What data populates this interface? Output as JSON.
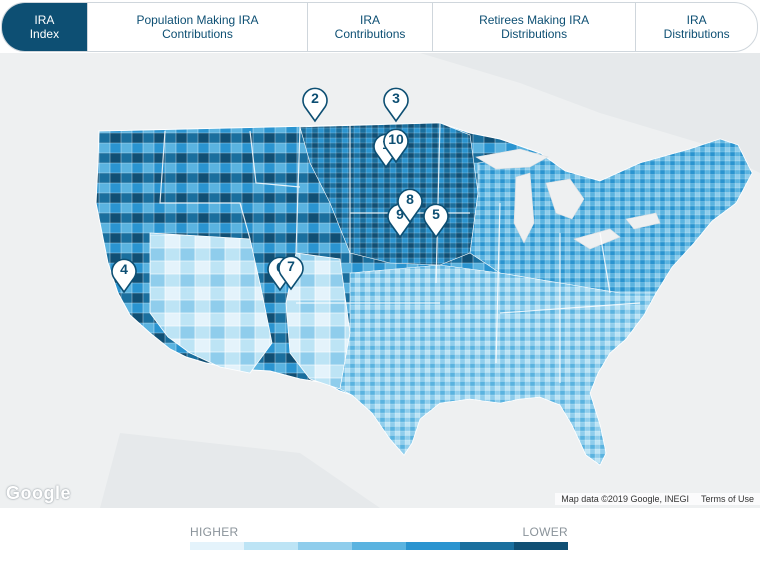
{
  "tabs": [
    {
      "label": "IRA\nIndex",
      "active": true
    },
    {
      "label": "Population Making IRA\nContributions",
      "active": false
    },
    {
      "label": "IRA\nContributions",
      "active": false
    },
    {
      "label": "Retirees Making IRA\nDistributions",
      "active": false
    },
    {
      "label": "IRA\nDistributions",
      "active": false
    }
  ],
  "map": {
    "logo_text": "Google",
    "attribution": "Map data ©2019 Google, INEGI",
    "terms": "Terms of Use",
    "markers": [
      "2",
      "3",
      "10",
      "1",
      "8",
      "9",
      "5",
      "4",
      "6",
      "7"
    ]
  },
  "legend": {
    "high_label": "HIGHER",
    "low_label": "LOWER",
    "colors": [
      "#e4f3fb",
      "#bde4f5",
      "#8fcdec",
      "#5ab3e0",
      "#2a94d0",
      "#1a6f9e",
      "#104f74"
    ]
  }
}
